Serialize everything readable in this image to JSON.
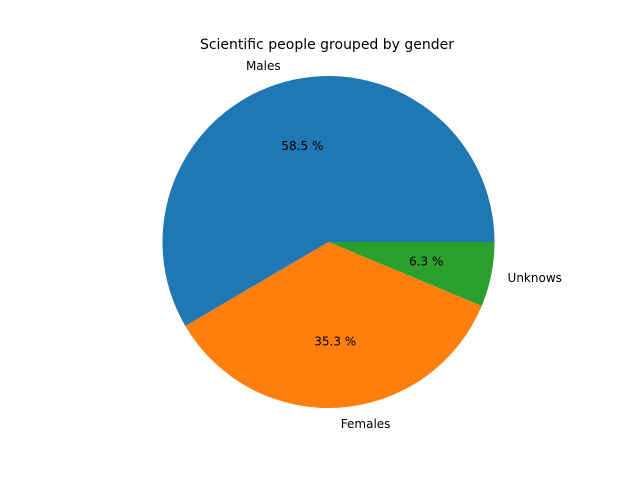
{
  "chart_data": {
    "type": "pie",
    "title": "Scientific people grouped by gender",
    "slices": [
      {
        "label": "Males",
        "value": 58.5,
        "value_label": "58.5 %",
        "color": "#1f77b4"
      },
      {
        "label": "Females",
        "value": 35.3,
        "value_label": "35.3 %",
        "color": "#ff7f0e"
      },
      {
        "label": "Unknows",
        "value": 6.3,
        "value_label": "6.3 %",
        "color": "#2ca02c"
      }
    ],
    "start_angle_deg": 0,
    "direction": "counterclockwise"
  }
}
